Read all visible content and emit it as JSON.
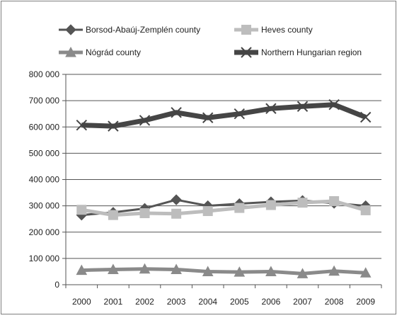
{
  "chart_data": {
    "type": "line",
    "title": "",
    "xlabel": "",
    "ylabel": "",
    "categories": [
      "2000",
      "2001",
      "2002",
      "2003",
      "2004",
      "2005",
      "2006",
      "2007",
      "2008",
      "2009"
    ],
    "ylim": [
      0,
      800000
    ],
    "y_ticks": [
      0,
      100000,
      200000,
      300000,
      400000,
      500000,
      600000,
      700000,
      800000
    ],
    "y_tick_labels": [
      "0",
      "100 000",
      "200 000",
      "300 000",
      "400 000",
      "500 000",
      "600 000",
      "700 000",
      "800 000"
    ],
    "grid": "horizontal",
    "legend_placement": "top",
    "series": [
      {
        "name": "Borsod-Abaúj-Zemplén county",
        "color": "#555555",
        "marker": "diamond",
        "values": [
          265000,
          275000,
          290000,
          323000,
          300000,
          308000,
          315000,
          320000,
          310000,
          300000
        ]
      },
      {
        "name": "Heves county",
        "color": "#bdbdbd",
        "marker": "square",
        "values": [
          285000,
          265000,
          272000,
          270000,
          280000,
          292000,
          303000,
          312000,
          318000,
          283000
        ]
      },
      {
        "name": "Nógrád county",
        "color": "#8a8a8a",
        "marker": "triangle",
        "values": [
          55000,
          58000,
          60000,
          58000,
          50000,
          48000,
          50000,
          42000,
          52000,
          45000
        ]
      },
      {
        "name": "Northern Hungarian region",
        "color": "#454545",
        "marker": "x",
        "values": [
          607000,
          603000,
          625000,
          655000,
          635000,
          650000,
          670000,
          678000,
          685000,
          637000
        ]
      }
    ]
  }
}
